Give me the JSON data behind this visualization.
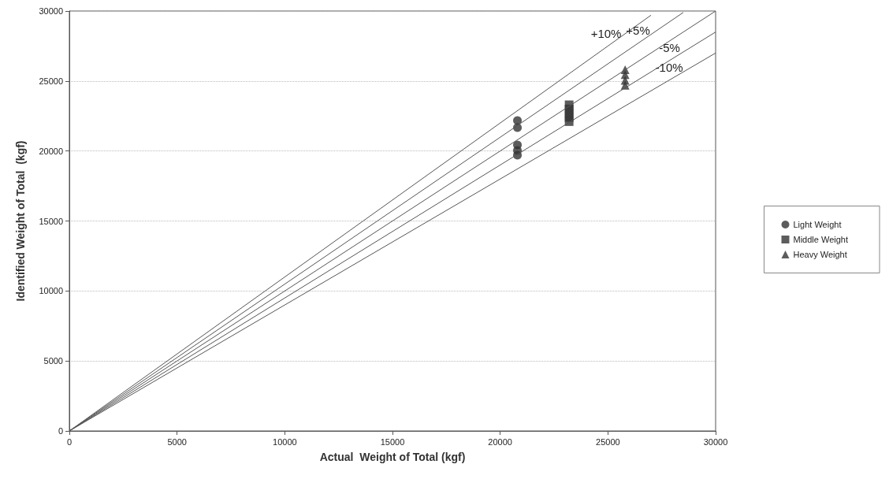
{
  "chart_data": {
    "type": "scatter",
    "xlabel": "Actual  Weight of Total (kgf)",
    "ylabel": "Identified Weight of Total  (kgf)",
    "xlim": [
      0,
      30000
    ],
    "ylim": [
      0,
      30000
    ],
    "xticks": [
      0,
      5000,
      10000,
      15000,
      20000,
      25000,
      30000
    ],
    "yticks": [
      0,
      5000,
      10000,
      15000,
      20000,
      25000,
      30000
    ],
    "grid": "y",
    "legend": "right",
    "marker": "circle",
    "series": [
      {
        "name": "Light Weight",
        "color": "#333333",
        "x": [
          20800,
          20800,
          20800,
          20800,
          20800
        ],
        "values": [
          22180,
          21670,
          20430,
          20040,
          19700
        ]
      },
      {
        "name": "Middle Weight",
        "color": "#333333",
        "marker": "square",
        "x": [
          23200,
          23200,
          23200,
          23200,
          23200
        ],
        "values": [
          23300,
          23000,
          22700,
          22400,
          22100
        ]
      },
      {
        "name": "Heavy Weight",
        "color": "#333333",
        "marker": "triangle",
        "x": [
          25800,
          25800,
          25800,
          25800
        ],
        "values": [
          25800,
          25450,
          25050,
          24700
        ]
      },
      {
        "name": "+10%",
        "type": "line",
        "color": "#555555",
        "marker": "none",
        "x": [
          0,
          27000
        ],
        "values": [
          0,
          29700
        ]
      },
      {
        "name": "+5%",
        "type": "line",
        "color": "#555555",
        "marker": "none",
        "x": [
          0,
          28500
        ],
        "values": [
          0,
          29900
        ]
      },
      {
        "type": "line",
        "color": "#555555",
        "marker": "none",
        "x": [
          0,
          30000
        ],
        "values": [
          0,
          30000
        ]
      },
      {
        "name": "-5%",
        "type": "line",
        "color": "#555555",
        "marker": "none",
        "x": [
          0,
          30000
        ],
        "values": [
          0,
          28500
        ]
      },
      {
        "name": "-10%",
        "type": "line",
        "color": "#555555",
        "marker": "none",
        "x": [
          0,
          30000
        ],
        "values": [
          0,
          27000
        ]
      }
    ]
  }
}
